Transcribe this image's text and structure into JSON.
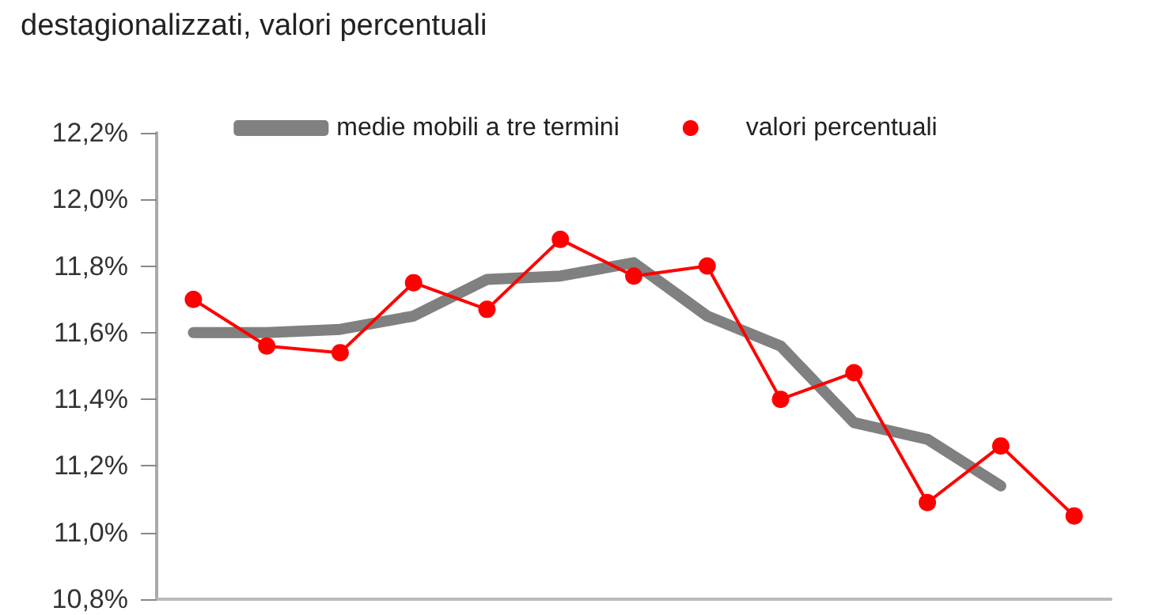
{
  "chart_data": {
    "type": "line",
    "title": "destagionalizzati, valori percentuali",
    "categories": [
      null,
      null,
      null,
      null,
      null,
      null,
      null,
      null,
      null,
      null,
      null,
      null,
      null
    ],
    "series": [
      {
        "name": "medie mobili a tre termini",
        "color": "#808080",
        "marker": "none",
        "values": [
          11.6,
          11.6,
          11.61,
          11.65,
          11.76,
          11.77,
          11.81,
          11.65,
          11.56,
          11.33,
          11.28,
          11.14,
          null
        ]
      },
      {
        "name": "valori percentuali",
        "color": "#ff0000",
        "marker": "circle",
        "values": [
          11.7,
          11.56,
          11.54,
          11.75,
          11.67,
          11.88,
          11.77,
          11.8,
          11.4,
          11.48,
          11.09,
          11.26,
          11.05
        ]
      }
    ],
    "ylim": [
      10.8,
      12.2
    ],
    "yticks": [
      {
        "value": 10.8,
        "label": "10,8%"
      },
      {
        "value": 11.0,
        "label": "11,0%"
      },
      {
        "value": 11.2,
        "label": "11,2%"
      },
      {
        "value": 11.4,
        "label": "11,4%"
      },
      {
        "value": 11.6,
        "label": "11,6%"
      },
      {
        "value": 11.8,
        "label": "11,8%"
      },
      {
        "value": 12.0,
        "label": "12,0%"
      },
      {
        "value": 12.2,
        "label": "12,2%"
      }
    ],
    "tick_labels": "y",
    "grid": false,
    "legend": "top"
  }
}
